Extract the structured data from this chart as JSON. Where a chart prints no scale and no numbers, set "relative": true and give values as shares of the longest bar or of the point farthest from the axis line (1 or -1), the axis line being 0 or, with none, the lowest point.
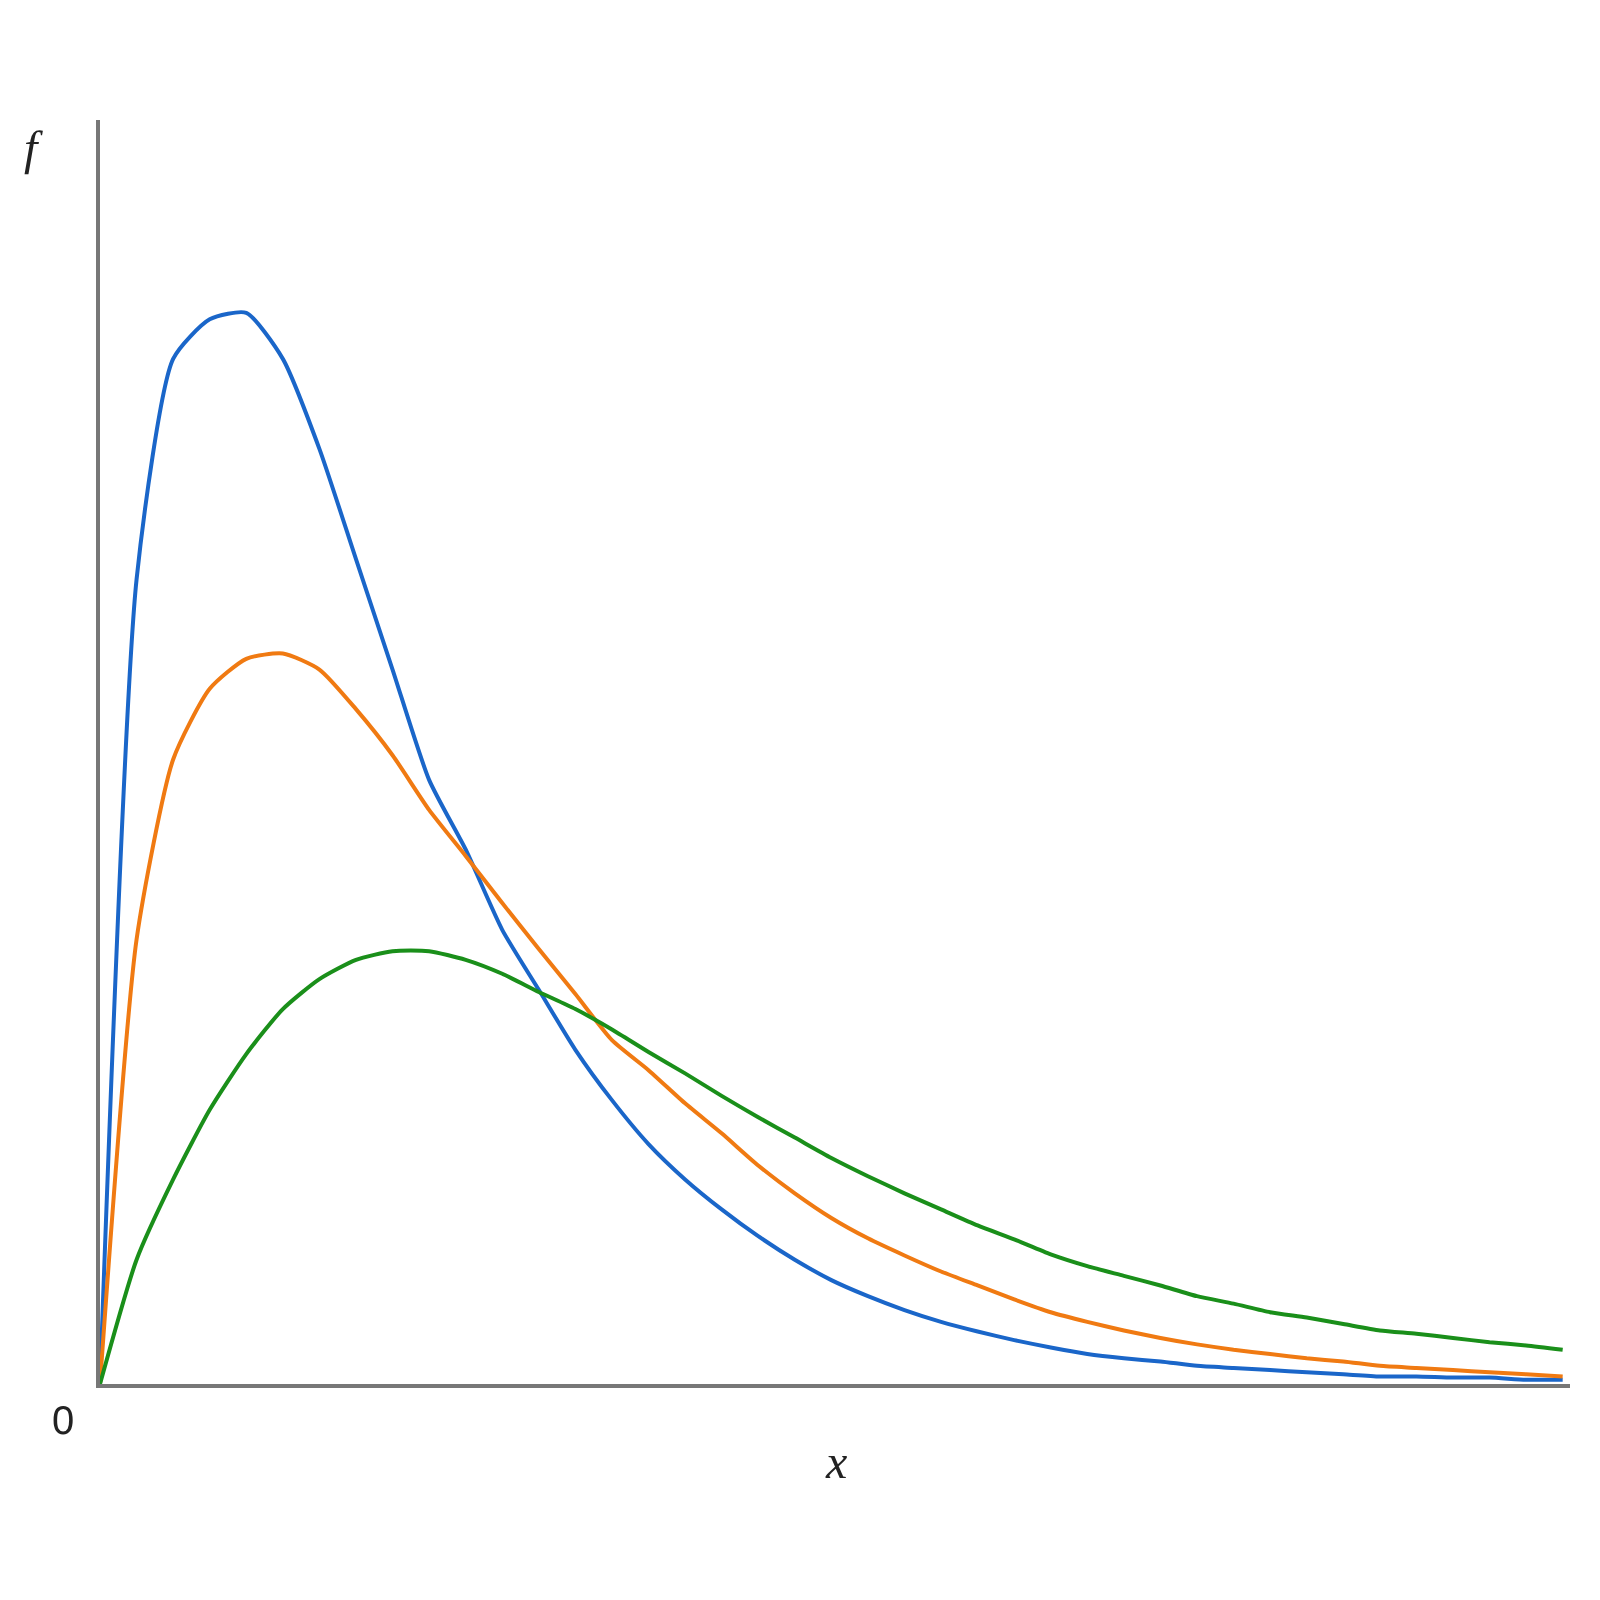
{
  "chart_data": {
    "type": "line",
    "relative": true,
    "xlabel": "x",
    "ylabel": "f",
    "annotations": [
      "0"
    ],
    "categories": [
      null,
      null,
      null,
      null,
      null,
      null,
      null,
      null,
      null,
      null,
      null,
      null,
      null,
      null,
      null,
      null,
      null,
      null,
      null,
      null,
      null,
      null,
      null,
      null,
      null,
      null,
      null,
      null,
      null,
      null,
      null,
      null,
      null,
      null,
      null,
      null,
      null,
      null,
      null,
      null,
      null
    ],
    "series": [
      {
        "color": "#1a66c9",
        "values": [
          0,
          0.751,
          0.957,
          0.994,
          1,
          0.957,
          0.873,
          0.77,
          0.667,
          0.564,
          0.499,
          0.424,
          0.368,
          0.312,
          0.265,
          0.224,
          0.191,
          0.163,
          0.138,
          0.116,
          0.097,
          0.082,
          0.069,
          0.058,
          0.049,
          0.041,
          0.034,
          0.028,
          0.024,
          0.021,
          0.017,
          0.015,
          0.013,
          0.011,
          0.009,
          0.007,
          0.007,
          0.006,
          0.006,
          0.004,
          0.004
        ]
      },
      {
        "color": "#f07a12",
        "values": [
          0,
          0.415,
          0.583,
          0.649,
          0.677,
          0.682,
          0.667,
          0.63,
          0.587,
          0.536,
          0.493,
          0.449,
          0.406,
          0.364,
          0.321,
          0.293,
          0.262,
          0.234,
          0.204,
          0.178,
          0.155,
          0.136,
          0.12,
          0.105,
          0.092,
          0.079,
          0.067,
          0.058,
          0.05,
          0.043,
          0.037,
          0.032,
          0.028,
          0.024,
          0.021,
          0.017,
          0.015,
          0.013,
          0.011,
          0.009,
          0.007
        ]
      },
      {
        "color": "#1a8f1a",
        "values": [
          0,
          0.116,
          0.191,
          0.256,
          0.308,
          0.35,
          0.378,
          0.396,
          0.404,
          0.404,
          0.396,
          0.383,
          0.366,
          0.35,
          0.331,
          0.31,
          0.29,
          0.269,
          0.249,
          0.23,
          0.211,
          0.194,
          0.178,
          0.163,
          0.148,
          0.135,
          0.121,
          0.11,
          0.101,
          0.092,
          0.082,
          0.075,
          0.067,
          0.062,
          0.056,
          0.05,
          0.047,
          0.043,
          0.039,
          0.036,
          0.032
        ]
      }
    ]
  }
}
